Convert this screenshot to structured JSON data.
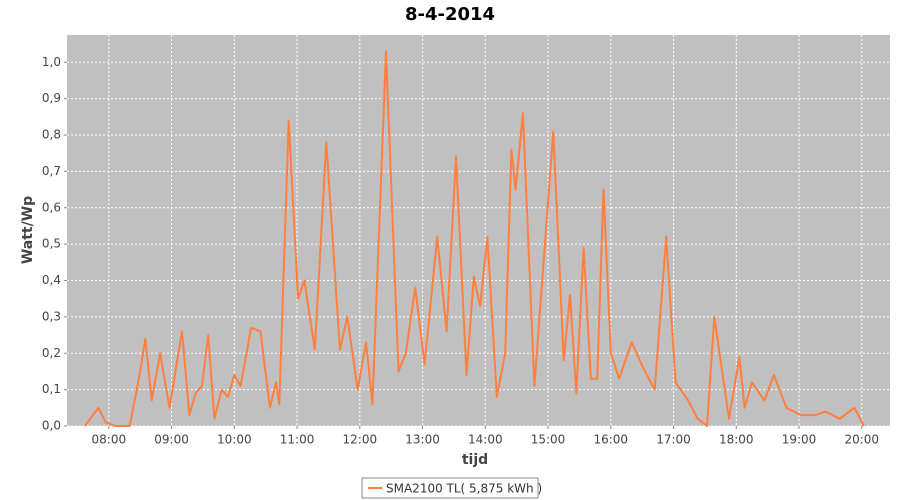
{
  "chart_data": {
    "type": "line",
    "title": "8-4-2014",
    "x_label": "tijd",
    "y_label": "Watt/Wp",
    "x": [
      "07:37",
      "07:50",
      "07:57",
      "08:06",
      "08:20",
      "08:30",
      "08:35",
      "08:41",
      "08:49",
      "08:58",
      "09:10",
      "09:17",
      "09:23",
      "09:29",
      "09:35",
      "09:41",
      "09:48",
      "09:54",
      "10:00",
      "10:06",
      "10:16",
      "10:25",
      "10:34",
      "10:40",
      "10:43",
      "10:52",
      "11:01",
      "11:07",
      "11:17",
      "11:28",
      "11:41",
      "11:48",
      "11:58",
      "12:06",
      "12:12",
      "12:25",
      "12:37",
      "12:44",
      "12:53",
      "13:02",
      "13:14",
      "13:23",
      "13:32",
      "13:42",
      "13:49",
      "13:55",
      "14:02",
      "14:11",
      "14:19",
      "14:25",
      "14:29",
      "14:36",
      "14:47",
      "15:05",
      "15:15",
      "15:21",
      "15:27",
      "15:34",
      "15:41",
      "15:47",
      "15:53",
      "16:00",
      "16:08",
      "16:20",
      "16:31",
      "16:42",
      "16:53",
      "17:02",
      "17:14",
      "17:23",
      "17:32",
      "17:39",
      "17:53",
      "18:03",
      "18:08",
      "18:15",
      "18:27",
      "18:36",
      "18:48",
      "19:02",
      "19:16",
      "19:25",
      "19:39",
      "19:53",
      "20:02"
    ],
    "series": [
      {
        "name": "SMA2100 TL( 5,875 kWh )",
        "color": "#ff7f3f",
        "values": [
          0.0,
          0.05,
          0.01,
          0.0,
          0.0,
          0.15,
          0.24,
          0.07,
          0.2,
          0.05,
          0.26,
          0.03,
          0.09,
          0.11,
          0.25,
          0.02,
          0.1,
          0.08,
          0.14,
          0.11,
          0.27,
          0.26,
          0.05,
          0.12,
          0.06,
          0.84,
          0.35,
          0.4,
          0.21,
          0.78,
          0.21,
          0.3,
          0.1,
          0.23,
          0.06,
          1.03,
          0.15,
          0.2,
          0.38,
          0.17,
          0.52,
          0.26,
          0.74,
          0.14,
          0.41,
          0.33,
          0.52,
          0.08,
          0.2,
          0.76,
          0.65,
          0.86,
          0.11,
          0.81,
          0.18,
          0.36,
          0.09,
          0.49,
          0.13,
          0.13,
          0.65,
          0.2,
          0.13,
          0.23,
          0.16,
          0.1,
          0.52,
          0.12,
          0.07,
          0.02,
          0.0,
          0.3,
          0.02,
          0.19,
          0.05,
          0.12,
          0.07,
          0.14,
          0.05,
          0.03,
          0.03,
          0.04,
          0.02,
          0.05,
          0.0
        ]
      }
    ],
    "xlim": [
      "07:20",
      "20:27"
    ],
    "xticks": [
      "08:00",
      "09:00",
      "10:00",
      "11:00",
      "12:00",
      "13:00",
      "14:00",
      "15:00",
      "16:00",
      "17:00",
      "18:00",
      "19:00",
      "20:00"
    ],
    "ylim": [
      0,
      1.075
    ],
    "yticks": [
      {
        "value": 0,
        "label": "0,0"
      },
      {
        "value": 0.1,
        "label": "0,1"
      },
      {
        "value": 0.2,
        "label": "0,2"
      },
      {
        "value": 0.3,
        "label": "0,3"
      },
      {
        "value": 0.4,
        "label": "0,4"
      },
      {
        "value": 0.5,
        "label": "0,5"
      },
      {
        "value": 0.6,
        "label": "0,6"
      },
      {
        "value": 0.7,
        "label": "0,7"
      },
      {
        "value": 0.8,
        "label": "0,8"
      },
      {
        "value": 0.9,
        "label": "0,9"
      },
      {
        "value": 1.0,
        "label": "1,0"
      }
    ],
    "grid": true
  }
}
